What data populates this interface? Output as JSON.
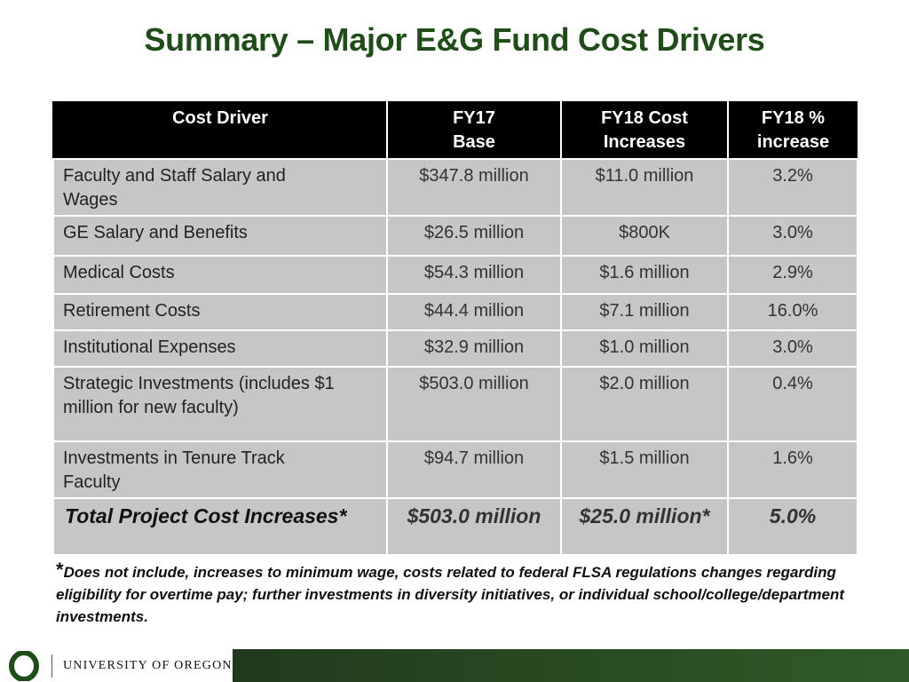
{
  "slide": {
    "title": "Summary – Major E&G Fund Cost Drivers"
  },
  "table": {
    "headers": {
      "cost_driver": "Cost Driver",
      "fy17_base_line1": "FY17",
      "fy17_base_line2": "Base",
      "fy18_cost_line1": "FY18 Cost",
      "fy18_cost_line2": "Increases",
      "fy18_pct_line1": "FY18 %",
      "fy18_pct_line2": "increase"
    },
    "rows": [
      {
        "driver": "Faculty and Staff Salary and Wages",
        "base": "$347.8 million",
        "increase": "$11.0 million",
        "pct": "3.2%"
      },
      {
        "driver": "GE Salary and Benefits",
        "base": "$26.5 million",
        "increase": "$800K",
        "pct": "3.0%"
      },
      {
        "driver": "Medical Costs",
        "base": "$54.3 million",
        "increase": "$1.6 million",
        "pct": "2.9%"
      },
      {
        "driver": "Retirement Costs",
        "base": "$44.4 million",
        "increase": "$7.1 million",
        "pct": "16.0%"
      },
      {
        "driver": "Institutional Expenses",
        "base": "$32.9 million",
        "increase": "$1.0 million",
        "pct": "3.0%"
      },
      {
        "driver": "Strategic Investments (includes $1 million for new faculty)",
        "base": "$503.0 million",
        "increase": "$2.0 million",
        "pct": "0.4%"
      },
      {
        "driver": "Investments in Tenure Track Faculty",
        "base": "$94.7 million",
        "increase": "$1.5 million",
        "pct": "1.6%"
      }
    ],
    "total": {
      "driver": "Total Project Cost Increases*",
      "base": "$503.0 million",
      "increase": "$25.0 million*",
      "pct": "5.0%"
    }
  },
  "footnote": {
    "marker": "*",
    "text": "Does not include, increases to minimum wage, costs related to federal FLSA regulations changes regarding eligibility for overtime pay; further investments in diversity initiatives, or individual school/college/department investments."
  },
  "footer": {
    "institution": "UNIVERSITY OF OREGON",
    "colors": {
      "brand_green": "#1e4d17",
      "brand_yellow": "#f2c21b"
    }
  }
}
